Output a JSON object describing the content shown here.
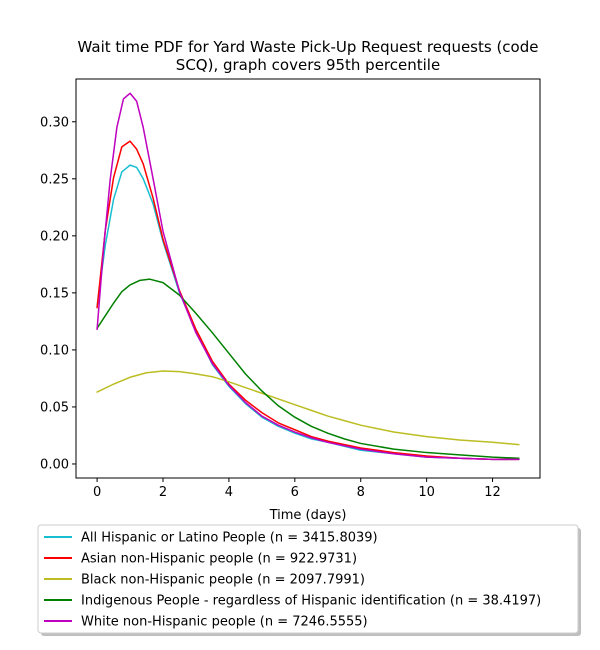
{
  "chart_data": {
    "type": "line",
    "title": "Wait time PDF for Yard Waste Pick-Up Request  requests (code SCQ), graph covers 95th percentile",
    "title_lines": [
      "Wait time PDF for Yard Waste Pick-Up Request  requests (code",
      "SCQ), graph covers 95th percentile"
    ],
    "xlabel": "Time (days)",
    "ylabel": "",
    "xlim": [
      -0.64,
      13.44
    ],
    "ylim": [
      -0.0123,
      0.3375
    ],
    "xticks": [
      0,
      2,
      4,
      6,
      8,
      10,
      12
    ],
    "xtick_labels": [
      "0",
      "2",
      "4",
      "6",
      "8",
      "10",
      "12"
    ],
    "yticks": [
      0.0,
      0.05,
      0.1,
      0.15,
      0.2,
      0.25,
      0.3
    ],
    "ytick_labels": [
      "0.00",
      "0.05",
      "0.10",
      "0.15",
      "0.20",
      "0.25",
      "0.30"
    ],
    "grid": false,
    "legend_position": "below plot",
    "series": [
      {
        "name": "All Hispanic or Latino People (n = 3415.8039)",
        "color": "#17becf",
        "x": [
          0,
          0.25,
          0.5,
          0.75,
          1.0,
          1.2,
          1.4,
          1.7,
          2.0,
          2.5,
          3.0,
          3.5,
          4.0,
          4.5,
          5.0,
          5.5,
          6.0,
          6.5,
          7.0,
          8.0,
          9.0,
          10.0,
          11.0,
          12.0,
          12.8
        ],
        "y": [
          0.138,
          0.192,
          0.232,
          0.256,
          0.262,
          0.26,
          0.25,
          0.228,
          0.195,
          0.15,
          0.117,
          0.087,
          0.068,
          0.053,
          0.041,
          0.033,
          0.027,
          0.022,
          0.019,
          0.012,
          0.009,
          0.006,
          0.005,
          0.004,
          0.004
        ]
      },
      {
        "name": "Asian non-Hispanic people (n = 922.9731)",
        "color": "#ff0000",
        "x": [
          0,
          0.25,
          0.5,
          0.75,
          1.0,
          1.2,
          1.4,
          1.7,
          2.0,
          2.5,
          3.0,
          3.5,
          4.0,
          4.5,
          5.0,
          5.5,
          6.0,
          6.5,
          7.0,
          8.0,
          9.0,
          10.0,
          11.0,
          12.0,
          12.8
        ],
        "y": [
          0.137,
          0.205,
          0.251,
          0.278,
          0.283,
          0.276,
          0.263,
          0.233,
          0.197,
          0.152,
          0.118,
          0.09,
          0.07,
          0.056,
          0.045,
          0.036,
          0.03,
          0.024,
          0.02,
          0.014,
          0.01,
          0.007,
          0.005,
          0.004,
          0.004
        ]
      },
      {
        "name": "Black non-Hispanic people (n = 2097.7991)",
        "color": "#bcbd22",
        "x": [
          0,
          0.5,
          1.0,
          1.5,
          2.0,
          2.5,
          3.0,
          3.5,
          4.0,
          4.5,
          5.0,
          5.5,
          6.0,
          6.5,
          7.0,
          7.5,
          8.0,
          8.5,
          9.0,
          10.0,
          11.0,
          12.0,
          12.8
        ],
        "y": [
          0.063,
          0.07,
          0.076,
          0.08,
          0.0815,
          0.081,
          0.079,
          0.0765,
          0.072,
          0.067,
          0.062,
          0.057,
          0.052,
          0.047,
          0.042,
          0.038,
          0.034,
          0.031,
          0.028,
          0.024,
          0.021,
          0.019,
          0.017
        ]
      },
      {
        "name": "Indigenous People - regardless of Hispanic identification (n = 38.4197)",
        "color": "#008000",
        "x": [
          0,
          0.25,
          0.5,
          0.75,
          1.0,
          1.3,
          1.6,
          2.0,
          2.5,
          3.0,
          3.5,
          4.0,
          4.5,
          5.0,
          5.5,
          6.0,
          6.5,
          7.0,
          7.5,
          8.0,
          9.0,
          10.0,
          11.0,
          12.0,
          12.8
        ],
        "y": [
          0.119,
          0.13,
          0.141,
          0.151,
          0.157,
          0.161,
          0.162,
          0.159,
          0.148,
          0.132,
          0.115,
          0.097,
          0.079,
          0.064,
          0.051,
          0.041,
          0.033,
          0.027,
          0.022,
          0.018,
          0.013,
          0.01,
          0.008,
          0.006,
          0.005
        ]
      },
      {
        "name": "White non-Hispanic people (n = 7246.5555)",
        "color": "#bf00bf",
        "x": [
          0,
          0.2,
          0.4,
          0.6,
          0.8,
          1.0,
          1.2,
          1.4,
          1.7,
          2.0,
          2.5,
          3.0,
          3.5,
          4.0,
          4.5,
          5.0,
          5.5,
          6.0,
          6.5,
          7.0,
          8.0,
          9.0,
          10.0,
          11.0,
          12.0,
          12.8
        ],
        "y": [
          0.118,
          0.19,
          0.25,
          0.295,
          0.32,
          0.325,
          0.318,
          0.295,
          0.25,
          0.204,
          0.151,
          0.115,
          0.088,
          0.069,
          0.054,
          0.042,
          0.034,
          0.028,
          0.023,
          0.019,
          0.013,
          0.009,
          0.006,
          0.005,
          0.004,
          0.004
        ]
      }
    ]
  }
}
